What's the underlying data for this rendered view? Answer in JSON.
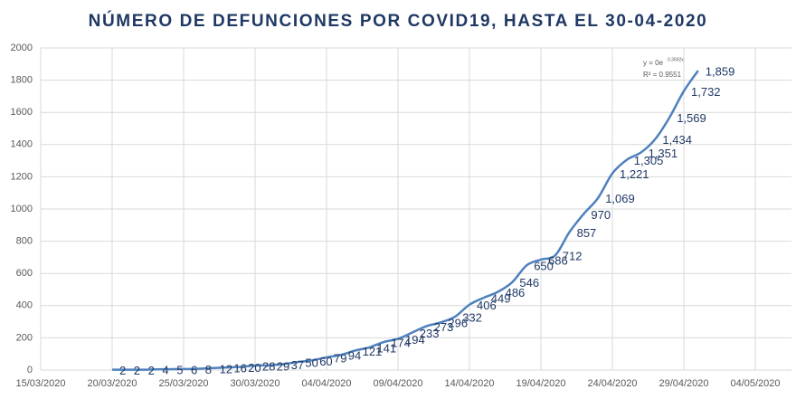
{
  "chart_data": {
    "type": "line",
    "title": "NÚMERO DE DEFUNCIONES POR COVID19, HASTA EL 30-04-2020",
    "annotations": [
      "y = 0e",
      "0.3692x",
      "R² = 0.9551"
    ],
    "x": [
      "20/03/2020",
      "21/03/2020",
      "22/03/2020",
      "23/03/2020",
      "24/03/2020",
      "25/03/2020",
      "26/03/2020",
      "27/03/2020",
      "28/03/2020",
      "29/03/2020",
      "30/03/2020",
      "31/03/2020",
      "01/04/2020",
      "02/04/2020",
      "03/04/2020",
      "04/04/2020",
      "05/04/2020",
      "06/04/2020",
      "07/04/2020",
      "08/04/2020",
      "09/04/2020",
      "10/04/2020",
      "11/04/2020",
      "12/04/2020",
      "13/04/2020",
      "14/04/2020",
      "15/04/2020",
      "16/04/2020",
      "17/04/2020",
      "18/04/2020",
      "19/04/2020",
      "20/04/2020",
      "21/04/2020",
      "22/04/2020",
      "23/04/2020",
      "24/04/2020",
      "25/04/2020",
      "26/04/2020",
      "27/04/2020",
      "28/04/2020",
      "29/04/2020",
      "30/04/2020"
    ],
    "series": [
      {
        "color": "#4f81bd",
        "values": [
          2,
          2,
          2,
          4,
          5,
          6,
          8,
          12,
          16,
          20,
          28,
          29,
          37,
          50,
          60,
          79,
          94,
          121,
          141,
          174,
          194,
          233,
          273,
          296,
          332,
          406,
          449,
          486,
          546,
          650,
          686,
          712,
          857,
          970,
          1069,
          1221,
          1305,
          1351,
          1434,
          1569,
          1732,
          1859
        ],
        "value_labels": [
          "2",
          "2",
          "2",
          "4",
          "5",
          "6",
          "8",
          "12",
          "16",
          "20",
          "28",
          "29",
          "37",
          "50",
          "60",
          "79",
          "94",
          "121",
          "141",
          "174",
          "194",
          "233",
          "273",
          "296",
          "332",
          "406",
          "449",
          "486",
          "546",
          "650",
          "686",
          "712",
          "857",
          "970",
          "1,069",
          "1,221",
          "1,305",
          "1,351",
          "1,434",
          "1,569",
          "1,732",
          "1,859"
        ]
      }
    ],
    "xlim": [
      "15/03/2020",
      "04/05/2020"
    ],
    "xticks": [
      "15/03/2020",
      "20/03/2020",
      "25/03/2020",
      "30/03/2020",
      "04/04/2020",
      "09/04/2020",
      "14/04/2020",
      "19/04/2020",
      "24/04/2020",
      "29/04/2020",
      "04/05/2020"
    ],
    "ylim": [
      0,
      2000
    ],
    "yticks": [
      0,
      200,
      400,
      600,
      800,
      1000,
      1200,
      1400,
      1600,
      1800,
      2000
    ],
    "grid": true
  }
}
